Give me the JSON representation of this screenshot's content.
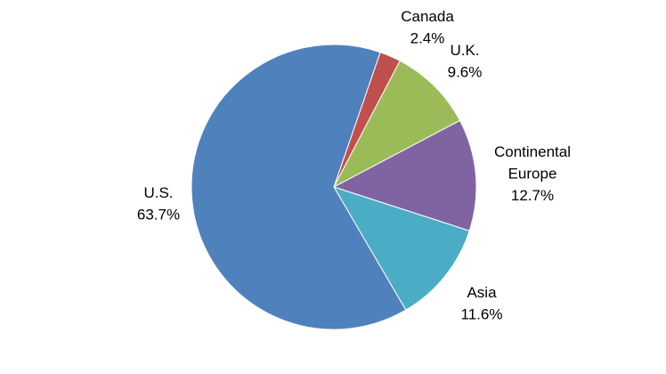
{
  "chart_data": {
    "type": "pie",
    "title": "",
    "start_angle_deg": 19,
    "direction": "clockwise",
    "slices": [
      {
        "label": "Canada",
        "value": 2.4,
        "value_label": "2.4%",
        "color": "#C0504D"
      },
      {
        "label": "U.K.",
        "value": 9.6,
        "value_label": "9.6%",
        "color": "#9BBB59"
      },
      {
        "label": "Continental Europe",
        "label_lines": [
          "Continental",
          "Europe"
        ],
        "value": 12.7,
        "value_label": "12.7%",
        "color": "#8064A2"
      },
      {
        "label": "Asia",
        "value": 11.6,
        "value_label": "11.6%",
        "color": "#4BACC6"
      },
      {
        "label": "U.S.",
        "value": 63.7,
        "value_label": "63.7%",
        "color": "#4F81BD"
      }
    ]
  }
}
